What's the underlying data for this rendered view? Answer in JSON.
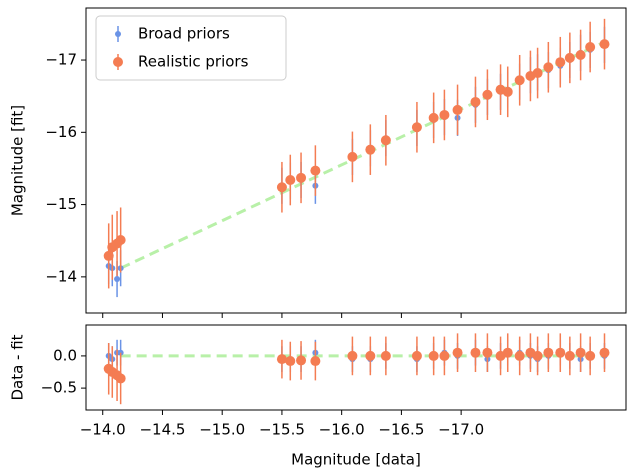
{
  "chart_data": [
    {
      "type": "errorbar",
      "ylabel": "Magnitude [fit]",
      "xlim": [
        -13.86,
        -18.38
      ],
      "ylim": [
        -13.5,
        -17.72
      ],
      "yticks": [
        {
          "value": -17,
          "label": "−17"
        },
        {
          "value": -16,
          "label": "−16"
        },
        {
          "value": -15,
          "label": "−15"
        },
        {
          "value": -14,
          "label": "−14"
        }
      ],
      "legend": "upper left",
      "fit": {
        "x": [
          -14.15,
          -18.2
        ],
        "values": [
          -14.12,
          -17.25
        ],
        "color": "#b8f0a8"
      },
      "series": [
        {
          "name": "Broad priors",
          "color": "#6a93e6",
          "marker_size": 3,
          "x": [
            -14.05,
            -14.08,
            -14.12,
            -14.15,
            -15.5,
            -15.57,
            -15.66,
            -15.78,
            -16.09,
            -16.24,
            -16.37,
            -16.63,
            -16.77,
            -16.86,
            -16.97,
            -17.12,
            -17.22,
            -17.33,
            -17.39,
            -17.49,
            -17.58,
            -17.64,
            -17.73,
            -17.83,
            -17.91,
            -18.0,
            -18.08,
            -18.2
          ],
          "values": [
            -14.15,
            -14.12,
            -13.97,
            -14.12,
            -15.26,
            -15.33,
            -15.34,
            -15.26,
            -15.66,
            -15.78,
            -15.92,
            -16.06,
            -16.17,
            -16.21,
            -16.2,
            -16.38,
            -16.49,
            -16.56,
            -16.59,
            -16.7,
            -16.79,
            -16.83,
            -16.86,
            -16.92,
            -17.0,
            -17.1,
            -17.14,
            -17.21
          ],
          "errors": [
            0.25,
            0.25,
            0.25,
            0.25,
            0.25,
            0.25,
            0.25,
            0.25,
            0.25,
            0.25,
            0.25,
            0.25,
            0.25,
            0.25,
            0.25,
            0.25,
            0.25,
            0.25,
            0.25,
            0.25,
            0.25,
            0.25,
            0.25,
            0.25,
            0.25,
            0.25,
            0.25,
            0.25
          ]
        },
        {
          "name": "Realistic priors",
          "color": "#f47c52",
          "marker_size": 5,
          "x": [
            -14.05,
            -14.08,
            -14.12,
            -14.15,
            -15.5,
            -15.57,
            -15.66,
            -15.78,
            -16.09,
            -16.24,
            -16.37,
            -16.63,
            -16.77,
            -16.86,
            -16.97,
            -17.12,
            -17.22,
            -17.33,
            -17.39,
            -17.49,
            -17.58,
            -17.64,
            -17.73,
            -17.83,
            -17.91,
            -18.0,
            -18.08,
            -18.2
          ],
          "values": [
            -14.29,
            -14.41,
            -14.46,
            -14.51,
            -15.24,
            -15.34,
            -15.37,
            -15.47,
            -15.66,
            -15.76,
            -15.89,
            -16.07,
            -16.2,
            -16.24,
            -16.31,
            -16.42,
            -16.52,
            -16.59,
            -16.56,
            -16.72,
            -16.78,
            -16.82,
            -16.9,
            -16.97,
            -17.03,
            -17.07,
            -17.18,
            -17.22
          ],
          "errors": [
            0.45,
            0.45,
            0.45,
            0.45,
            0.35,
            0.35,
            0.35,
            0.35,
            0.35,
            0.35,
            0.35,
            0.35,
            0.35,
            0.35,
            0.35,
            0.35,
            0.35,
            0.35,
            0.35,
            0.35,
            0.35,
            0.35,
            0.35,
            0.35,
            0.35,
            0.35,
            0.35,
            0.35
          ]
        }
      ]
    },
    {
      "type": "errorbar",
      "ylabel": "Data - fit",
      "xlabel": "Magnitude [data]",
      "xlim": [
        -13.86,
        -18.38
      ],
      "ylim": [
        -0.84,
        0.48
      ],
      "xticks": [
        {
          "value": -14.0,
          "label": "−14.0"
        },
        {
          "value": -14.5,
          "label": "−14.5"
        },
        {
          "value": -15.0,
          "label": "−15.0"
        },
        {
          "value": -15.5,
          "label": "−15.5"
        },
        {
          "value": -16.0,
          "label": "−16.0"
        },
        {
          "value": -16.5,
          "label": "−16.5"
        },
        {
          "value": -17.0,
          "label": "−17.0"
        }
      ],
      "yticks": [
        {
          "value": 0,
          "label": "0.0"
        },
        {
          "value": -0.5,
          "label": "−0.5"
        }
      ],
      "fit": {
        "x": [
          -14.15,
          -18.2
        ],
        "values": [
          0,
          0
        ],
        "color": "#b8f0a8"
      },
      "series": [
        {
          "color": "#6a93e6",
          "marker_size": 3,
          "x": [
            -14.05,
            -14.08,
            -14.12,
            -14.15,
            -15.5,
            -15.57,
            -15.66,
            -15.78,
            -16.09,
            -16.24,
            -16.37,
            -16.63,
            -16.77,
            -16.86,
            -16.97,
            -17.12,
            -17.22,
            -17.33,
            -17.39,
            -17.49,
            -17.58,
            -17.64,
            -17.73,
            -17.83,
            -17.91,
            -18.0,
            -18.08,
            -18.2
          ],
          "values": [
            0.0,
            -0.05,
            0.05,
            0.05,
            -0.05,
            -0.05,
            -0.05,
            0.05,
            -0.05,
            -0.05,
            0.0,
            -0.05,
            0.0,
            0.05,
            0.0,
            0.05,
            -0.05,
            0.0,
            0.05,
            0.05,
            0.0,
            -0.05,
            0.0,
            0.05,
            0.0,
            -0.05,
            0.0,
            0.0
          ],
          "errors": [
            0.2,
            0.2,
            0.2,
            0.2,
            0.2,
            0.2,
            0.2,
            0.2,
            0.2,
            0.2,
            0.2,
            0.2,
            0.2,
            0.2,
            0.2,
            0.2,
            0.2,
            0.2,
            0.2,
            0.2,
            0.2,
            0.2,
            0.2,
            0.2,
            0.2,
            0.2,
            0.2,
            0.2
          ]
        },
        {
          "color": "#f47c52",
          "marker_size": 5,
          "x": [
            -14.05,
            -14.08,
            -14.12,
            -14.15,
            -15.5,
            -15.57,
            -15.66,
            -15.78,
            -16.09,
            -16.24,
            -16.37,
            -16.63,
            -16.77,
            -16.86,
            -16.97,
            -17.12,
            -17.22,
            -17.33,
            -17.39,
            -17.49,
            -17.58,
            -17.64,
            -17.73,
            -17.83,
            -17.91,
            -18.0,
            -18.08,
            -18.2
          ],
          "values": [
            -0.2,
            -0.25,
            -0.3,
            -0.35,
            -0.05,
            -0.08,
            -0.07,
            -0.08,
            0.0,
            0.0,
            0.0,
            0.0,
            0.0,
            0.0,
            0.05,
            0.05,
            0.05,
            0.0,
            0.05,
            0.0,
            0.05,
            0.0,
            0.05,
            0.05,
            0.0,
            0.05,
            0.0,
            0.05
          ],
          "errors": [
            0.4,
            0.4,
            0.4,
            0.4,
            0.3,
            0.3,
            0.3,
            0.3,
            0.3,
            0.3,
            0.3,
            0.3,
            0.3,
            0.3,
            0.3,
            0.3,
            0.3,
            0.3,
            0.3,
            0.3,
            0.3,
            0.3,
            0.3,
            0.3,
            0.3,
            0.3,
            0.3,
            0.3
          ]
        }
      ]
    }
  ]
}
